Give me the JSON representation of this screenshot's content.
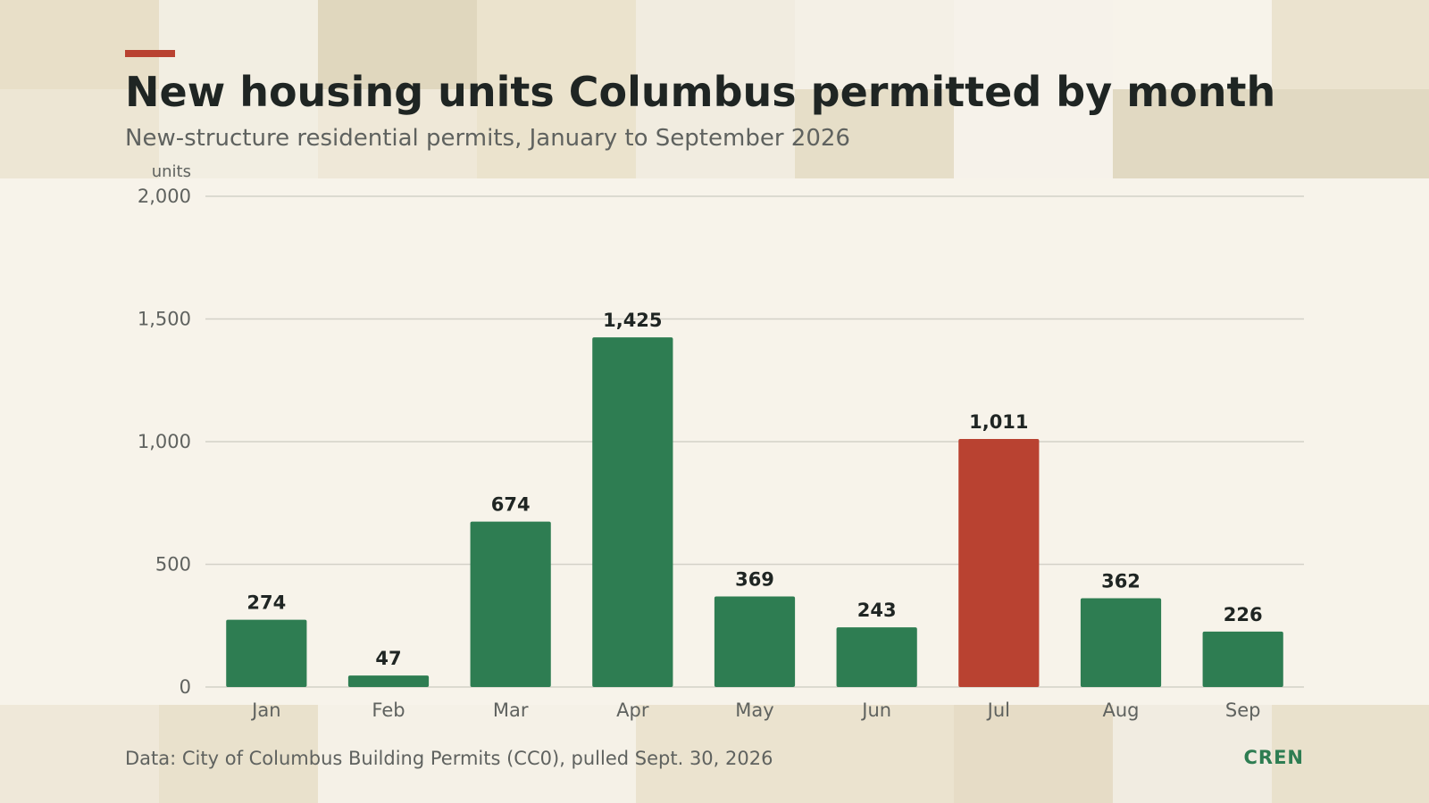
{
  "header": {
    "title": "New housing units Columbus permitted by month",
    "subtitle": "New-structure residential permits, January to September 2026"
  },
  "footer": {
    "source": "Data: City of Columbus Building Permits (CC0), pulled Sept. 30, 2026",
    "brand": "CREN"
  },
  "colors": {
    "accent": "#b94231",
    "bar_default": "#2e7d52",
    "bar_highlight": "#b94231",
    "text_dark": "#1f2523",
    "text_muted": "#5f625f",
    "grid": "#d4d1c8",
    "background": "#f7f3ea"
  },
  "chart_data": {
    "type": "bar",
    "categories": [
      "Jan",
      "Feb",
      "Mar",
      "Apr",
      "May",
      "Jun",
      "Jul",
      "Aug",
      "Sep"
    ],
    "values": [
      274,
      47,
      674,
      1425,
      369,
      243,
      1011,
      362,
      226
    ],
    "value_labels": [
      "274",
      "47",
      "674",
      "1,425",
      "369",
      "243",
      "1,011",
      "362",
      "226"
    ],
    "highlight_category": "Jul",
    "ylabel": "units",
    "ylim": [
      0,
      2000
    ],
    "yticks": [
      0,
      500,
      1000,
      1500,
      2000
    ],
    "ytick_labels": [
      "0",
      "500",
      "1,000",
      "1,500",
      "2,000"
    ],
    "grid": true,
    "legend": "none"
  }
}
